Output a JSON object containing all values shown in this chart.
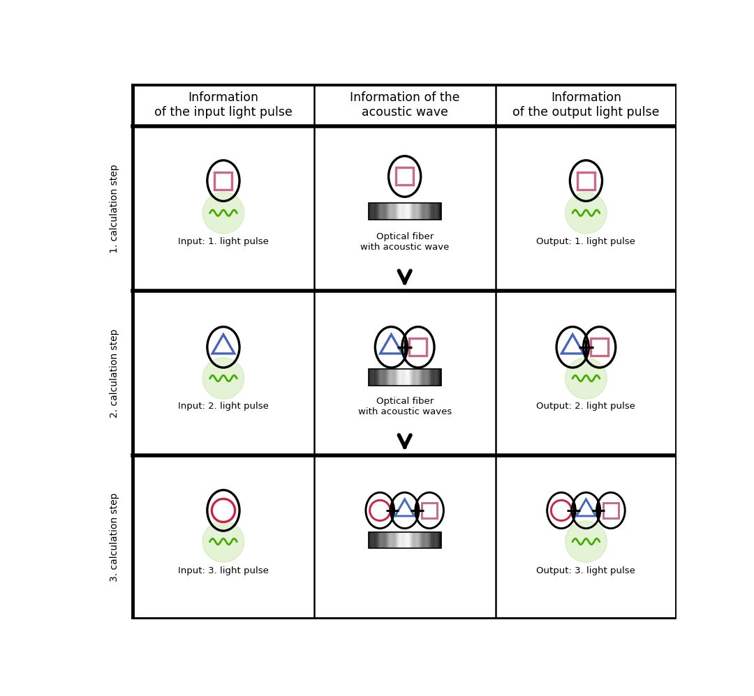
{
  "bg_color": "#ffffff",
  "col_headers": [
    "Information\nof the input light pulse",
    "Information of the\nacoustic wave",
    "Information\nof the output light pulse"
  ],
  "row_labels": [
    "1. calculation step",
    "2. calculation step",
    "3. calculation step"
  ],
  "pink": "#c8688a",
  "blue": "#4466bb",
  "red": "#cc2244",
  "black": "#000000",
  "green_wave": "#44aa00",
  "green_glow": "#88cc44",
  "title_fontsize": 12.5,
  "label_fontsize": 9.5,
  "row_label_fontsize": 10.0
}
